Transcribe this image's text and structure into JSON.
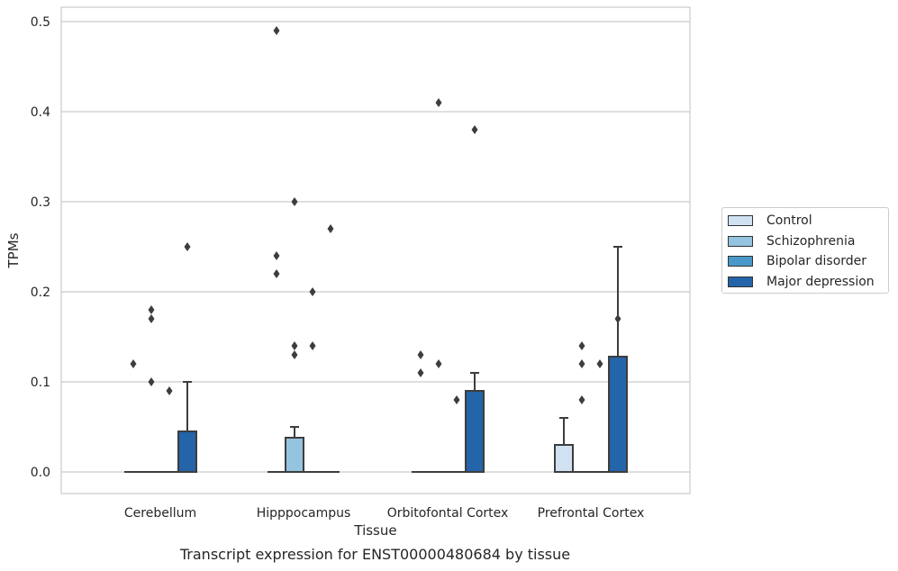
{
  "caption": "Transcript expression for ENST00000480684 by tissue",
  "chart_data": {
    "type": "box",
    "xlabel": "Tissue",
    "ylabel": "TPMs",
    "ylim": [
      -0.024,
      0.515
    ],
    "yticks": [
      0.0,
      0.1,
      0.2,
      0.3,
      0.4,
      0.5
    ],
    "yticklabels": [
      "0.0",
      "0.1",
      "0.2",
      "0.3",
      "0.4",
      "0.5"
    ],
    "grid": "horizontal",
    "legend_position": "right",
    "categories": [
      "Cerebellum",
      "Hipppocampus",
      "Orbitofontal Cortex",
      "Prefrontal Cortex"
    ],
    "series": [
      {
        "name": "Control",
        "color": "#d0e1f2",
        "boxes": [
          {
            "q1": 0,
            "median": 0,
            "q3": 0,
            "whisker_low": 0,
            "whisker_high": 0,
            "outliers": [
              0.12
            ]
          },
          {
            "q1": 0,
            "median": 0,
            "q3": 0,
            "whisker_low": 0,
            "whisker_high": 0,
            "outliers": [
              0.49,
              0.24,
              0.22
            ]
          },
          {
            "q1": 0,
            "median": 0,
            "q3": 0,
            "whisker_low": 0,
            "whisker_high": 0,
            "outliers": [
              0.13,
              0.11
            ]
          },
          {
            "q1": 0,
            "median": 0,
            "q3": 0.03,
            "whisker_low": 0,
            "whisker_high": 0.06,
            "outliers": []
          }
        ]
      },
      {
        "name": "Schizophrenia",
        "color": "#94c4df",
        "boxes": [
          {
            "q1": 0,
            "median": 0,
            "q3": 0,
            "whisker_low": 0,
            "whisker_high": 0,
            "outliers": [
              0.18,
              0.17,
              0.1
            ]
          },
          {
            "q1": 0,
            "median": 0,
            "q3": 0.038,
            "whisker_low": 0,
            "whisker_high": 0.05,
            "outliers": [
              0.3,
              0.14,
              0.13
            ]
          },
          {
            "q1": 0,
            "median": 0,
            "q3": 0,
            "whisker_low": 0,
            "whisker_high": 0,
            "outliers": [
              0.41,
              0.12
            ]
          },
          {
            "q1": 0,
            "median": 0,
            "q3": 0,
            "whisker_low": 0,
            "whisker_high": 0,
            "outliers": [
              0.14,
              0.12,
              0.08
            ]
          }
        ]
      },
      {
        "name": "Bipolar disorder",
        "color": "#4a98c9",
        "boxes": [
          {
            "q1": 0,
            "median": 0,
            "q3": 0,
            "whisker_low": 0,
            "whisker_high": 0,
            "outliers": [
              0.09
            ]
          },
          {
            "q1": 0,
            "median": 0,
            "q3": 0,
            "whisker_low": 0,
            "whisker_high": 0,
            "outliers": [
              0.2,
              0.14
            ]
          },
          {
            "q1": 0,
            "median": 0,
            "q3": 0,
            "whisker_low": 0,
            "whisker_high": 0,
            "outliers": [
              0.08
            ]
          },
          {
            "q1": 0,
            "median": 0,
            "q3": 0,
            "whisker_low": 0,
            "whisker_high": 0,
            "outliers": [
              0.12
            ]
          }
        ]
      },
      {
        "name": "Major depression",
        "color": "#2464a8",
        "boxes": [
          {
            "q1": 0,
            "median": 0,
            "q3": 0.045,
            "whisker_low": 0,
            "whisker_high": 0.1,
            "outliers": [
              0.25
            ]
          },
          {
            "q1": 0,
            "median": 0,
            "q3": 0,
            "whisker_low": 0,
            "whisker_high": 0,
            "outliers": [
              0.27
            ]
          },
          {
            "q1": 0,
            "median": 0,
            "q3": 0.09,
            "whisker_low": 0,
            "whisker_high": 0.11,
            "outliers": [
              0.38
            ]
          },
          {
            "q1": 0,
            "median": 0,
            "q3": 0.128,
            "whisker_low": 0,
            "whisker_high": 0.25,
            "outliers": [
              0.17
            ]
          }
        ]
      }
    ]
  }
}
